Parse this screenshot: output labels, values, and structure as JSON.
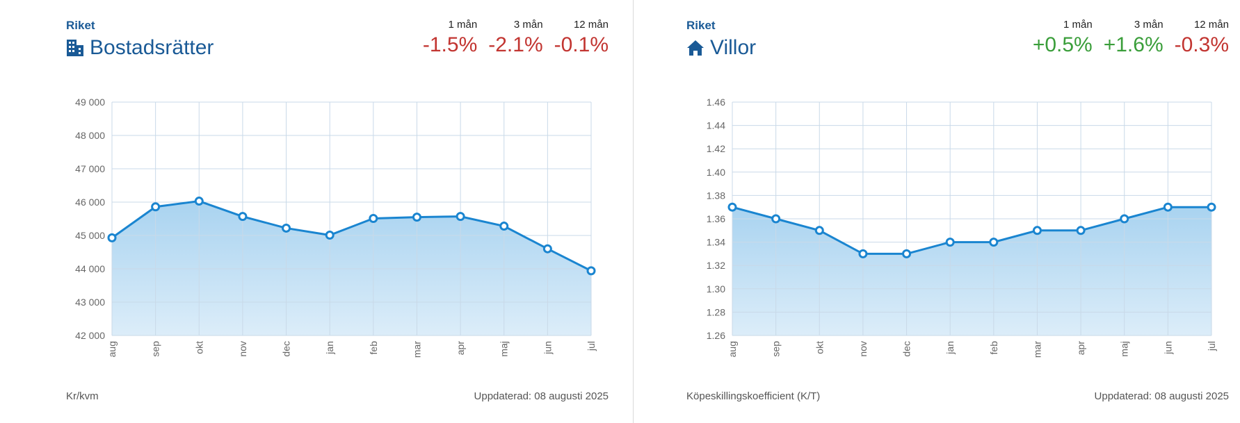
{
  "panels": [
    {
      "region": "Riket",
      "title": "Bostadsrätter",
      "icon": "building-icon",
      "stats": [
        {
          "label": "1 mån",
          "value": "-1.5%",
          "trend": "neg"
        },
        {
          "label": "3 mån",
          "value": "-2.1%",
          "trend": "neg"
        },
        {
          "label": "12 mån",
          "value": "-0.1%",
          "trend": "neg"
        }
      ],
      "unit_label": "Kr/kvm",
      "updated": "Uppdaterad: 08 augusti 2025"
    },
    {
      "region": "Riket",
      "title": "Villor",
      "icon": "house-icon",
      "stats": [
        {
          "label": "1 mån",
          "value": "+0.5%",
          "trend": "pos"
        },
        {
          "label": "3 mån",
          "value": "+1.6%",
          "trend": "pos"
        },
        {
          "label": "12 mån",
          "value": "-0.3%",
          "trend": "neg"
        }
      ],
      "unit_label": "Köpeskillingskoefficient (K/T)",
      "updated": "Uppdaterad: 08 augusti 2025"
    }
  ],
  "colors": {
    "line": "#1a85d0",
    "area_top": "#a9d3f0",
    "area_bottom": "#dcedf9",
    "grid": "#c9d9e8",
    "title": "#1a5a96",
    "neg": "#c23531",
    "pos": "#3a9e3a"
  },
  "chart_data": [
    {
      "type": "area",
      "categories": [
        "aug",
        "sep",
        "okt",
        "nov",
        "dec",
        "jan",
        "feb",
        "mar",
        "apr",
        "maj",
        "jun",
        "jul"
      ],
      "series": [
        {
          "values": [
            44930,
            45860,
            46030,
            45570,
            45220,
            45010,
            45510,
            45550,
            45570,
            45280,
            44600,
            43940
          ]
        }
      ],
      "ylim": [
        42000,
        49000
      ],
      "yticks": [
        42000,
        43000,
        44000,
        45000,
        46000,
        47000,
        48000,
        49000
      ],
      "ytick_labels": [
        "42 000",
        "43 000",
        "44 000",
        "45 000",
        "46 000",
        "47 000",
        "48 000",
        "49 000"
      ],
      "grid": true
    },
    {
      "type": "area",
      "categories": [
        "aug",
        "sep",
        "okt",
        "nov",
        "dec",
        "jan",
        "feb",
        "mar",
        "apr",
        "maj",
        "jun",
        "jul"
      ],
      "series": [
        {
          "values": [
            1.37,
            1.36,
            1.35,
            1.33,
            1.33,
            1.34,
            1.34,
            1.35,
            1.35,
            1.36,
            1.37,
            1.37
          ]
        }
      ],
      "ylim": [
        1.26,
        1.46
      ],
      "yticks": [
        1.26,
        1.28,
        1.3,
        1.32,
        1.34,
        1.36,
        1.38,
        1.4,
        1.42,
        1.44,
        1.46
      ],
      "ytick_labels": [
        "1.26",
        "1.28",
        "1.30",
        "1.32",
        "1.34",
        "1.36",
        "1.38",
        "1.40",
        "1.42",
        "1.44",
        "1.46"
      ],
      "grid": true
    }
  ]
}
